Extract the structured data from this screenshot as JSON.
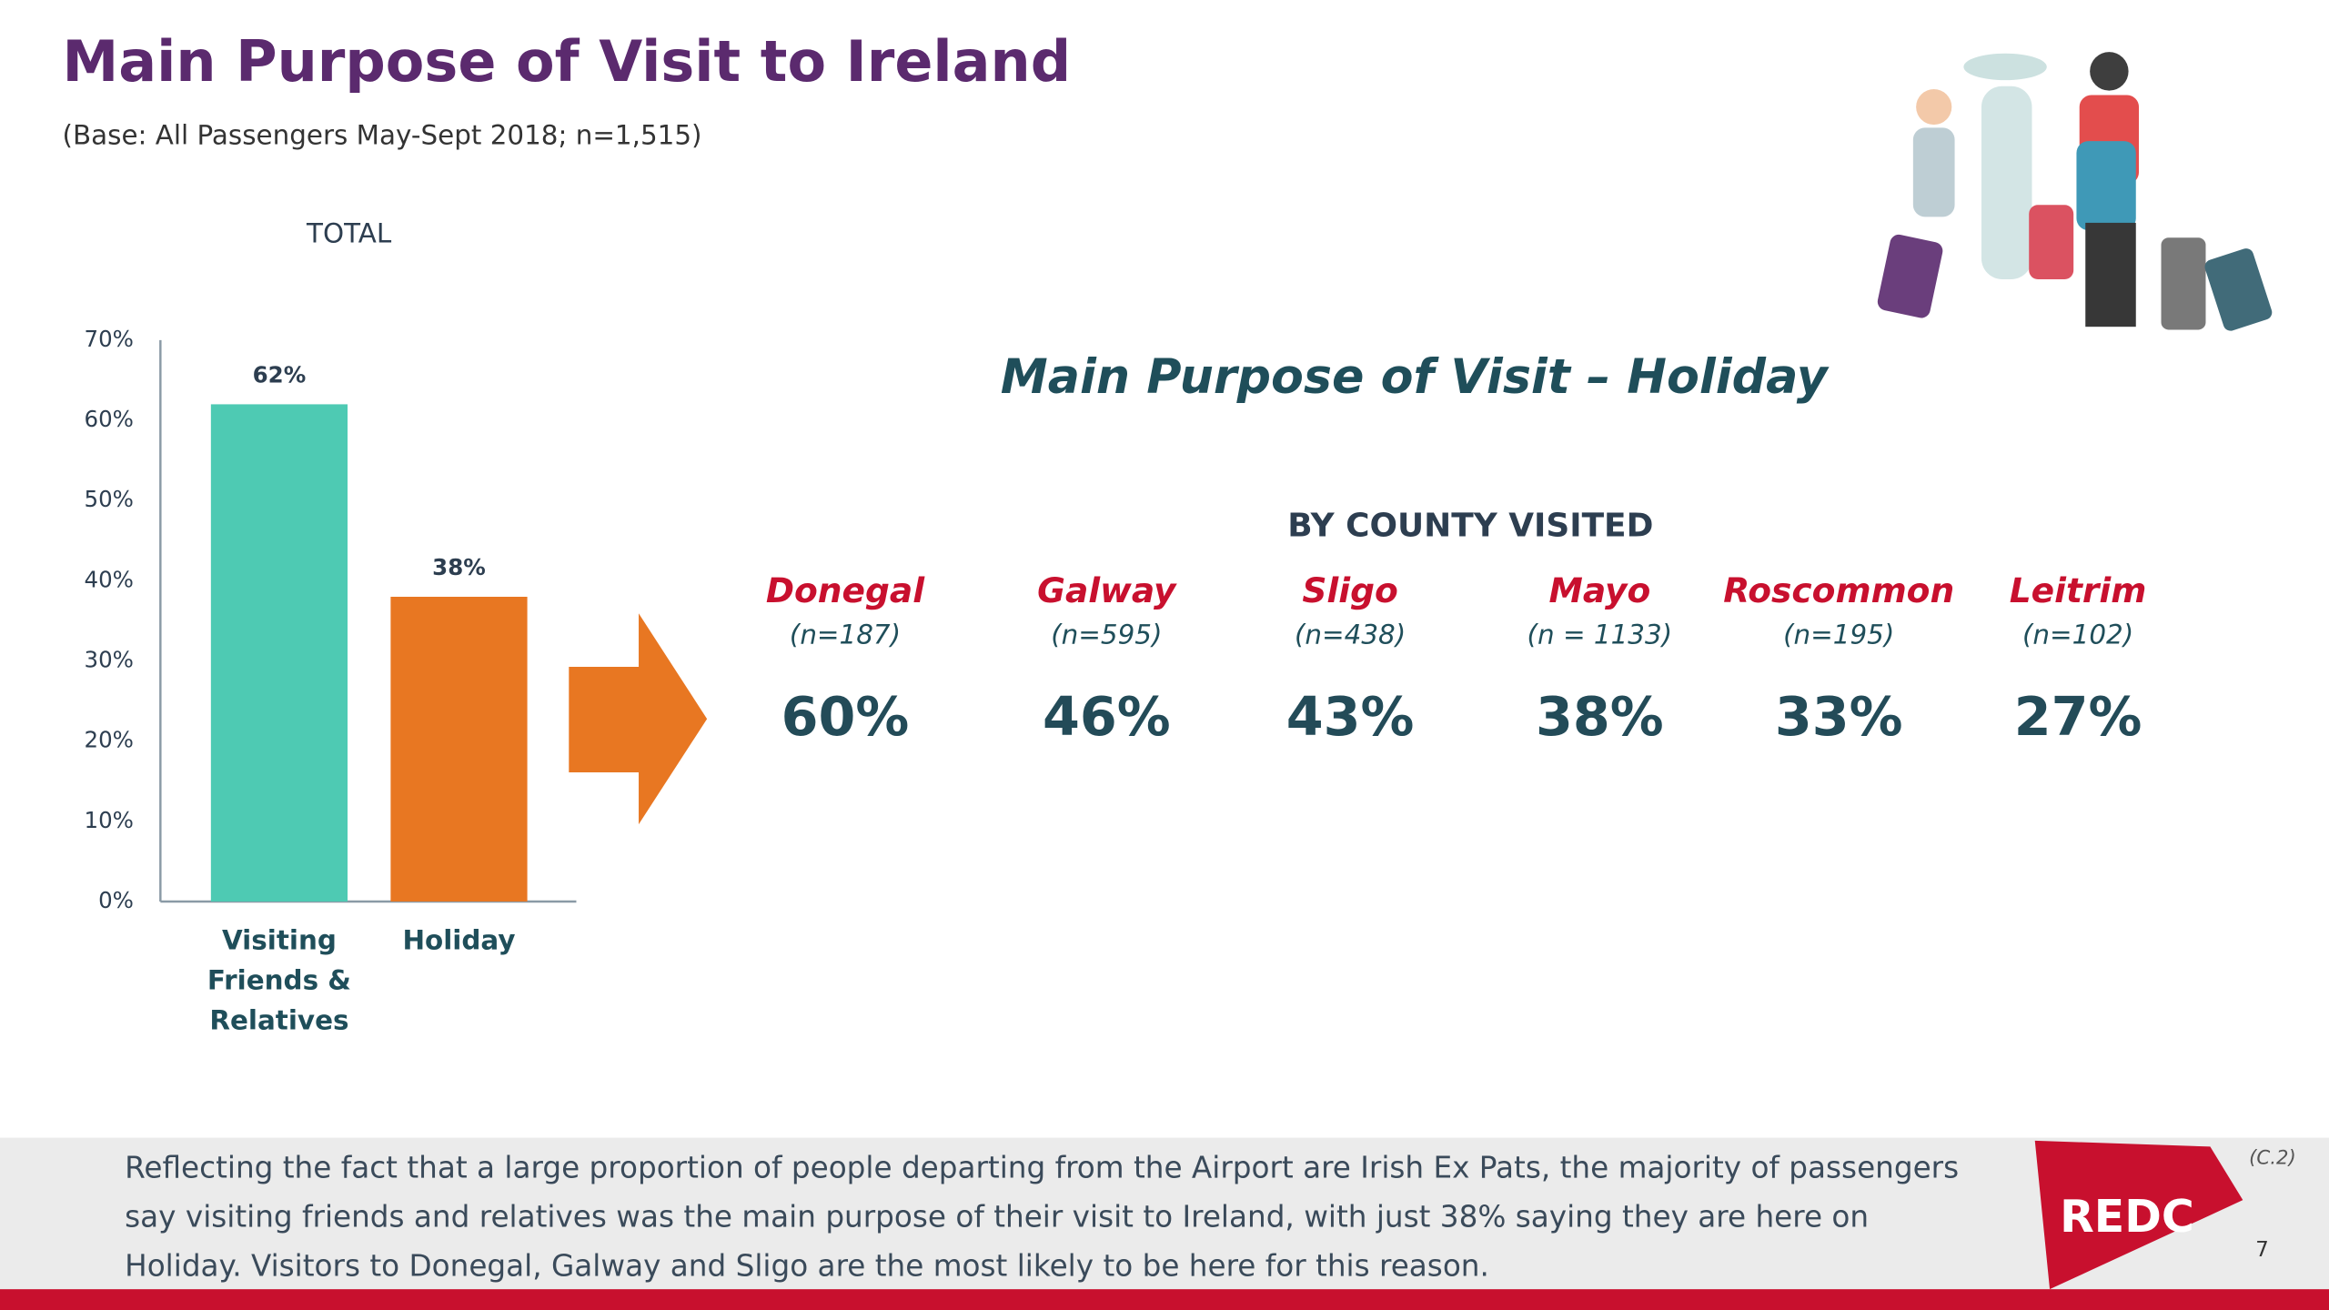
{
  "title": "Main Purpose of Visit to Ireland",
  "subtitle": "(Base: All Passengers May-Sept 2018; n=1,515)",
  "chart_data": {
    "type": "bar",
    "title": "TOTAL",
    "categories": [
      "Visiting Friends & Relatives",
      "Holiday"
    ],
    "values": [
      62,
      38
    ],
    "value_labels": [
      "62%",
      "38%"
    ],
    "colors": [
      "#4ecab3",
      "#e87722"
    ],
    "ylim": [
      0,
      70
    ],
    "yticks": [
      {
        "value": 0,
        "label": "0%"
      },
      {
        "value": 10,
        "label": "10%"
      },
      {
        "value": 20,
        "label": "20%"
      },
      {
        "value": 30,
        "label": "30%"
      },
      {
        "value": 40,
        "label": "40%"
      },
      {
        "value": 50,
        "label": "50%"
      },
      {
        "value": 60,
        "label": "60%"
      },
      {
        "value": 70,
        "label": "70%"
      }
    ]
  },
  "holiday": {
    "title": "Main Purpose of Visit – Holiday",
    "subtitle": "BY COUNTY VISITED",
    "counties": [
      {
        "name": "Donegal",
        "n": "(n=187)",
        "value": "60%"
      },
      {
        "name": "Galway",
        "n": "(n=595)",
        "value": "46%"
      },
      {
        "name": "Sligo",
        "n": "(n=438)",
        "value": "43%"
      },
      {
        "name": "Mayo",
        "n": "(n = 1133)",
        "value": "38%"
      },
      {
        "name": "Roscommon",
        "n": "(n=195)",
        "value": "33%"
      },
      {
        "name": "Leitrim",
        "n": "(n=102)",
        "value": "27%"
      }
    ]
  },
  "footer": {
    "text": "Reflecting the fact that a large proportion of people departing from the Airport are Irish Ex Pats, the majority of passengers say visiting friends and relatives was the main purpose of their visit to Ireland, with just 38% saying they are here on Holiday. Visitors to Donegal, Galway and Sligo are the most likely to be here for this reason.",
    "code": "(C.2)",
    "logo": "REDC",
    "page": "7"
  }
}
